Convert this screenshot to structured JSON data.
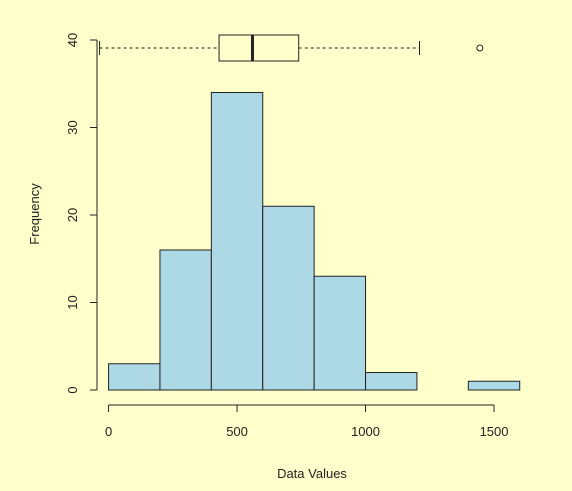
{
  "chart_data": {
    "type": "bar",
    "subtype": "histogram-with-boxplot",
    "title": "",
    "xlabel": "Data Values",
    "ylabel": "Frequency",
    "bins": [
      {
        "from": 0,
        "to": 200,
        "count": 3
      },
      {
        "from": 200,
        "to": 400,
        "count": 16
      },
      {
        "from": 400,
        "to": 600,
        "count": 34
      },
      {
        "from": 600,
        "to": 800,
        "count": 21
      },
      {
        "from": 800,
        "to": 1000,
        "count": 13
      },
      {
        "from": 1000,
        "to": 1200,
        "count": 2
      },
      {
        "from": 1200,
        "to": 1400,
        "count": 0
      },
      {
        "from": 1400,
        "to": 1600,
        "count": 1
      }
    ],
    "x_ticks": [
      "0",
      "500",
      "1000",
      "1500"
    ],
    "y_ticks": [
      "0",
      "10",
      "20",
      "30",
      "40"
    ],
    "xlim": [
      -45,
      1640
    ],
    "ylim": [
      0,
      40
    ],
    "boxplot": {
      "whisker_low": -35,
      "q1": 430,
      "median": 560,
      "q3": 740,
      "whisker_high": 1210,
      "outliers": [
        1445
      ]
    },
    "grid": false,
    "legend": "none",
    "colors": {
      "background": "#ffffcc",
      "bar_fill": "#add8e6",
      "stroke": "#222222"
    }
  }
}
